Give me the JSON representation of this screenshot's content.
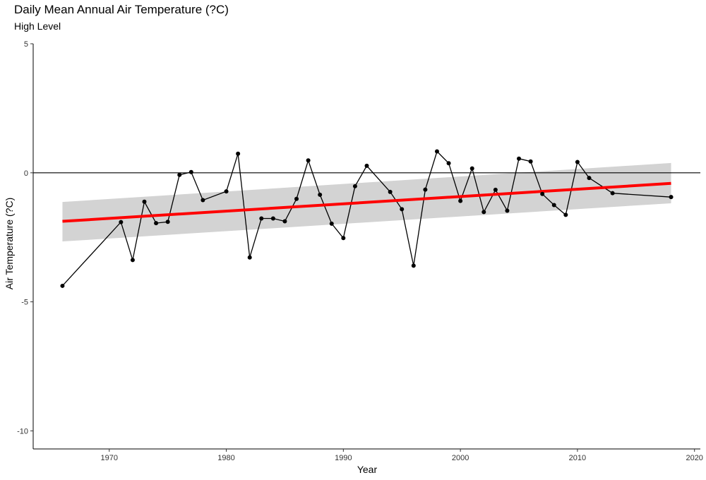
{
  "chart_data": {
    "type": "line",
    "title": "Daily Mean Annual Air Temperature (?C)",
    "subtitle": "High Level",
    "xlabel": "Year",
    "ylabel": "Air Temperature (?C)",
    "xlim": [
      1963.5,
      2020.5
    ],
    "ylim": [
      -10.7,
      5.0
    ],
    "x_ticks": [
      1970,
      1980,
      1990,
      2000,
      2010,
      2020
    ],
    "y_ticks": [
      5,
      0,
      -5,
      -10
    ],
    "x_tick_labels": [
      "1970",
      "1980",
      "1990",
      "2000",
      "2010",
      "2020"
    ],
    "y_tick_labels": [
      "5",
      "0",
      "-5",
      "-10"
    ],
    "grid": false,
    "reference_line_y": 0,
    "series": [
      {
        "x": [
          1966,
          1971,
          1972,
          1973,
          1974,
          1975,
          1976,
          1977,
          1978,
          1980,
          1981,
          1982,
          1983,
          1984,
          1985,
          1986,
          1987,
          1988,
          1989,
          1990,
          1991,
          1992,
          1994,
          1995,
          1996,
          1997,
          1998,
          1999,
          2000,
          2001,
          2002,
          2003,
          2004,
          2005,
          2006,
          2007,
          2008,
          2009,
          2010,
          2011,
          2013,
          2018
        ],
        "y": [
          -4.38,
          -1.91,
          -3.38,
          -1.12,
          -1.95,
          -1.9,
          -0.08,
          0.03,
          -1.06,
          -0.72,
          0.74,
          -3.28,
          -1.77,
          -1.77,
          -1.88,
          -1.01,
          0.48,
          -0.85,
          -1.97,
          -2.53,
          -0.52,
          0.27,
          -0.74,
          -1.41,
          -3.6,
          -0.65,
          0.83,
          0.37,
          -1.09,
          0.17,
          -1.52,
          -0.66,
          -1.47,
          0.55,
          0.44,
          -0.82,
          -1.25,
          -1.63,
          0.42,
          -0.2,
          -0.79,
          -0.94
        ],
        "color": "#000000"
      }
    ],
    "trend": {
      "x": [
        1966,
        2018
      ],
      "y": [
        -1.88,
        -0.41
      ],
      "ci_lower": [
        -2.66,
        -1.18
      ],
      "ci_upper": [
        -1.13,
        0.38
      ],
      "color": "#ff0000",
      "ribbon_color": "#d3d3d3"
    }
  }
}
